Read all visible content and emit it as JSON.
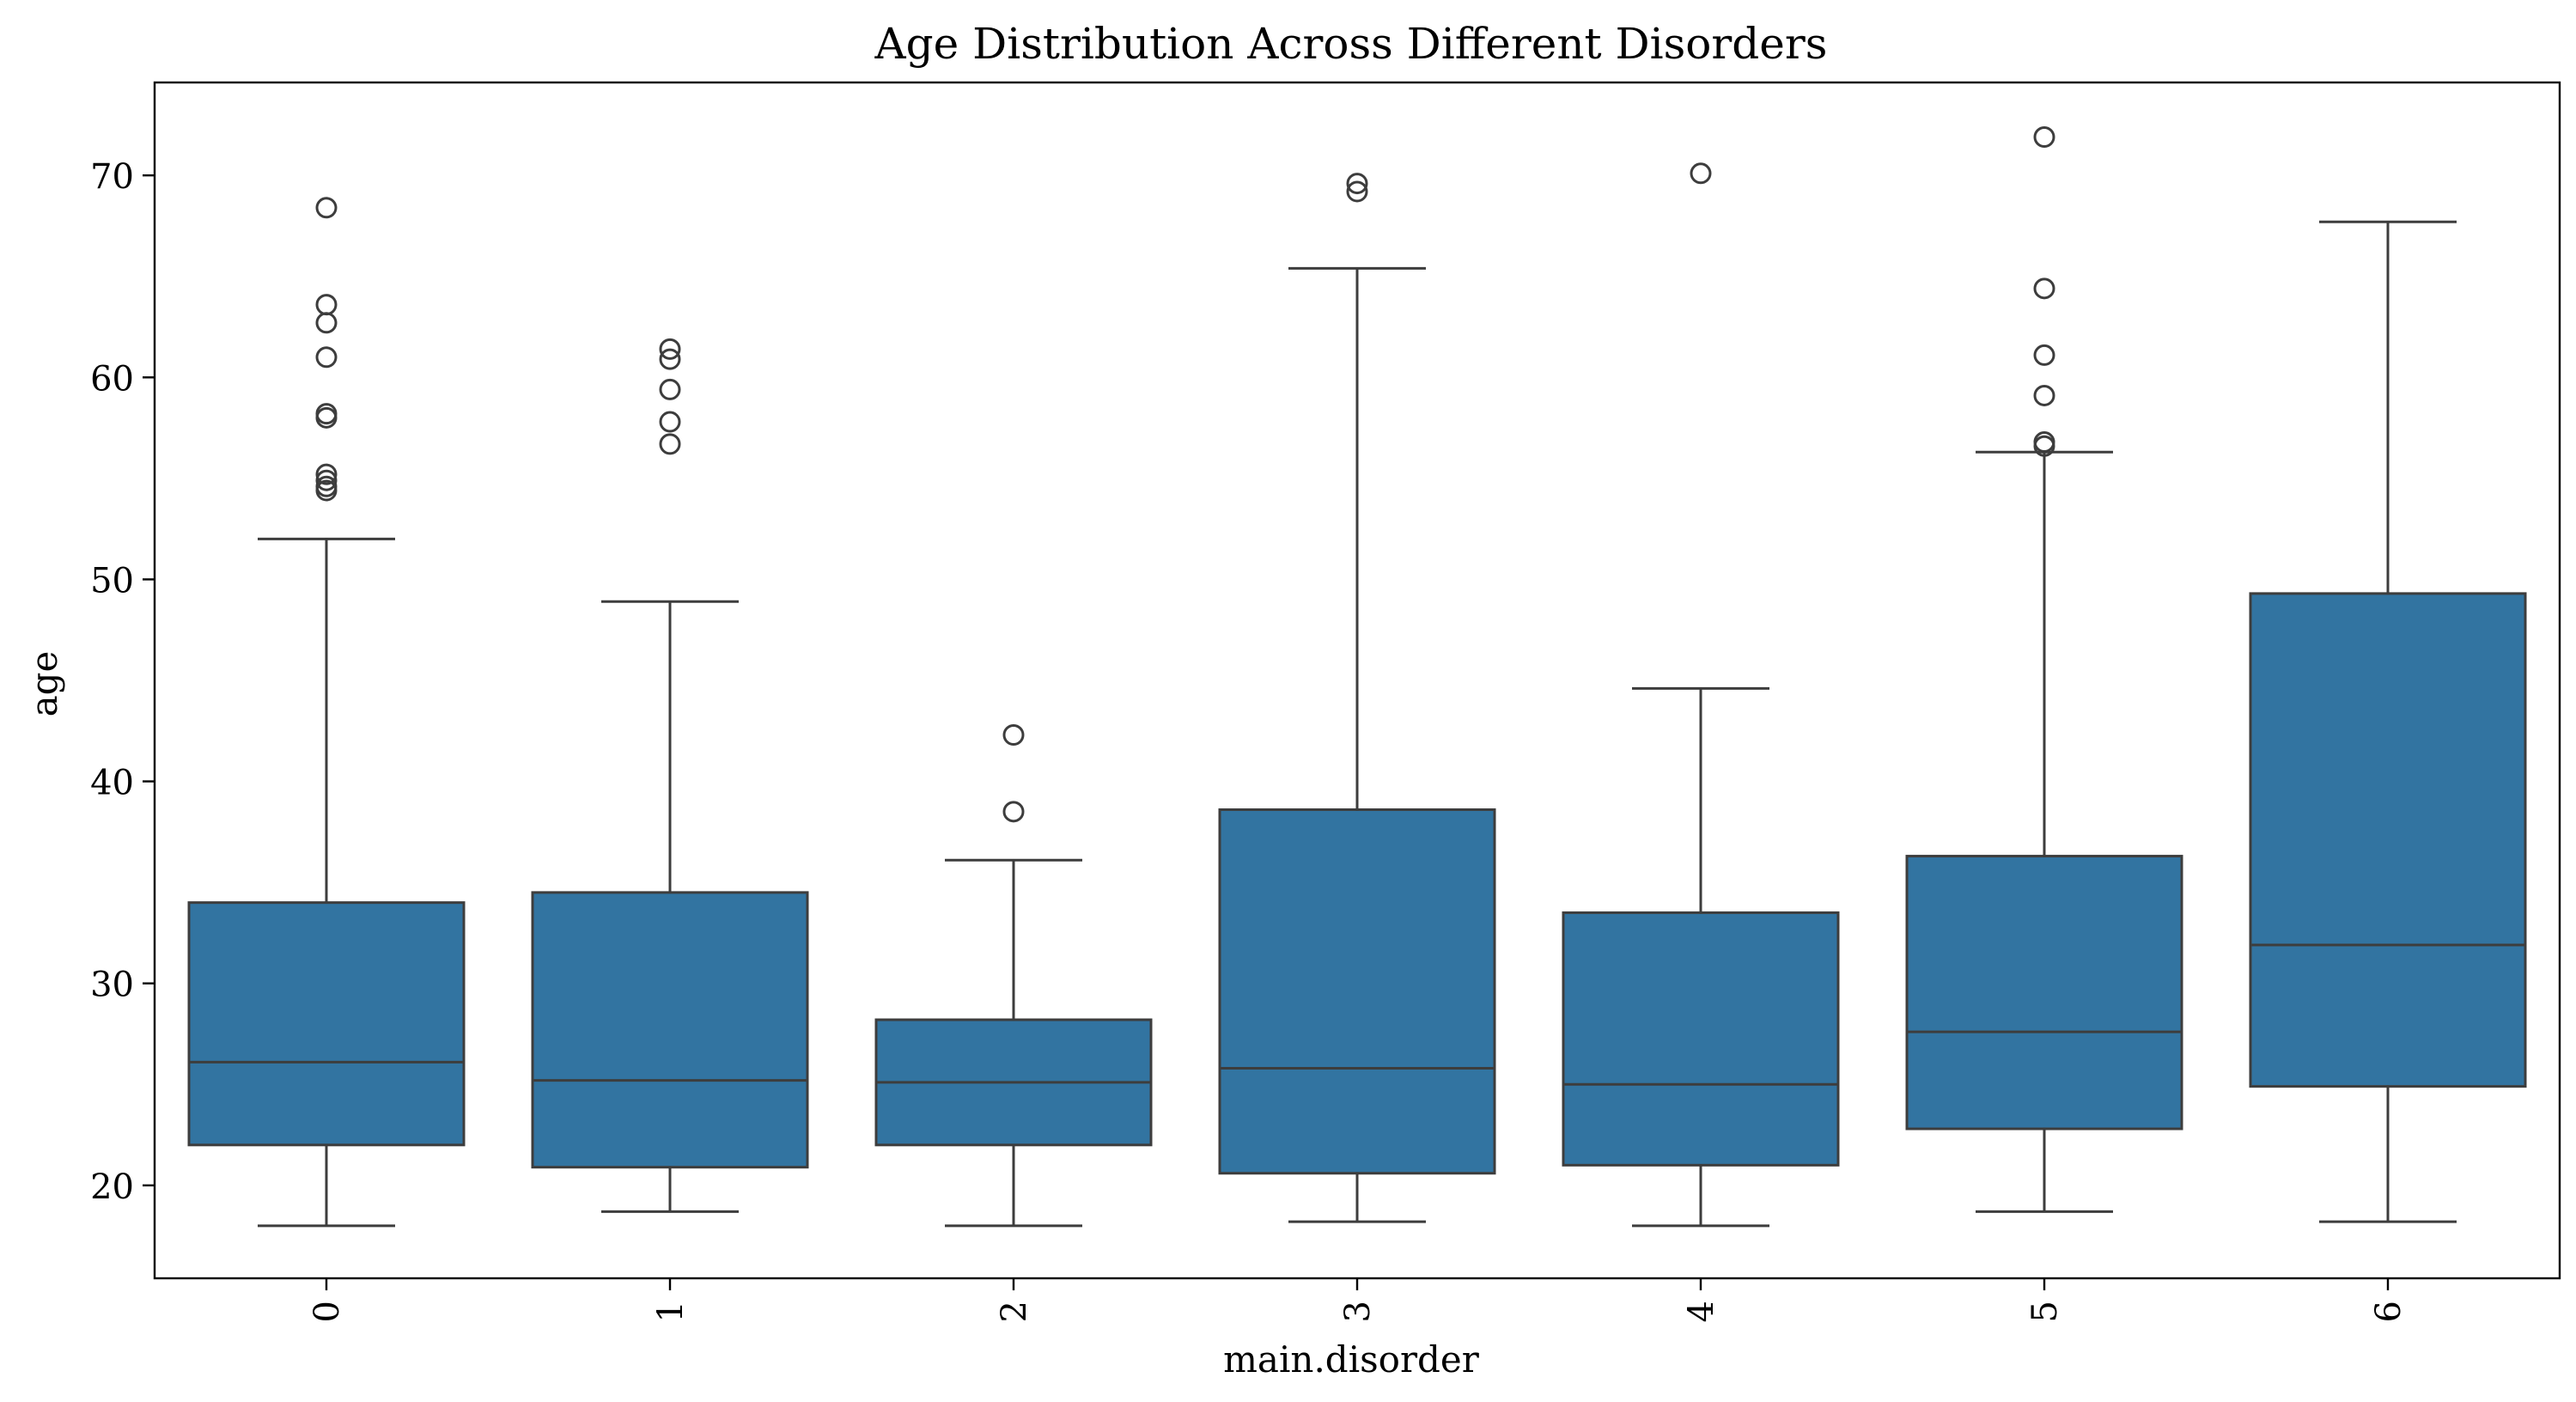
{
  "chart_data": {
    "type": "box",
    "title": "Age Distribution Across Different Disorders",
    "xlabel": "main.disorder",
    "ylabel": "age",
    "ylim": [
      15.4,
      74.6
    ],
    "yticks": [
      20,
      30,
      40,
      50,
      60,
      70
    ],
    "ytick_labels": [
      "20",
      "30",
      "40",
      "50",
      "60",
      "70"
    ],
    "categories": [
      "0",
      "1",
      "2",
      "3",
      "4",
      "5",
      "6"
    ],
    "box_color": "#3274a1",
    "line_color": "#3d3d3d",
    "boxes": [
      {
        "category": "0",
        "whisker_low": 18.0,
        "q1": 22.0,
        "median": 26.1,
        "q3": 34.0,
        "whisker_high": 52.0,
        "outliers": [
          68.4,
          63.6,
          62.7,
          61.0,
          58.2,
          58.0,
          55.2,
          54.9,
          54.6,
          54.4
        ]
      },
      {
        "category": "1",
        "whisker_low": 18.7,
        "q1": 20.9,
        "median": 25.2,
        "q3": 34.5,
        "whisker_high": 48.9,
        "outliers": [
          61.4,
          60.9,
          59.4,
          57.8,
          56.7
        ]
      },
      {
        "category": "2",
        "whisker_low": 18.0,
        "q1": 22.0,
        "median": 25.1,
        "q3": 28.2,
        "whisker_high": 36.1,
        "outliers": [
          42.3,
          38.5
        ]
      },
      {
        "category": "3",
        "whisker_low": 18.2,
        "q1": 20.6,
        "median": 25.8,
        "q3": 38.6,
        "whisker_high": 65.4,
        "outliers": [
          69.6,
          69.2
        ]
      },
      {
        "category": "4",
        "whisker_low": 18.0,
        "q1": 21.0,
        "median": 25.0,
        "q3": 33.5,
        "whisker_high": 44.6,
        "outliers": [
          70.1
        ]
      },
      {
        "category": "5",
        "whisker_low": 18.7,
        "q1": 22.8,
        "median": 27.6,
        "q3": 36.3,
        "whisker_high": 56.3,
        "outliers": [
          71.9,
          64.4,
          61.1,
          59.1,
          56.8,
          56.6
        ]
      },
      {
        "category": "6",
        "whisker_low": 18.2,
        "q1": 24.9,
        "median": 31.9,
        "q3": 49.3,
        "whisker_high": 67.7,
        "outliers": []
      }
    ]
  }
}
